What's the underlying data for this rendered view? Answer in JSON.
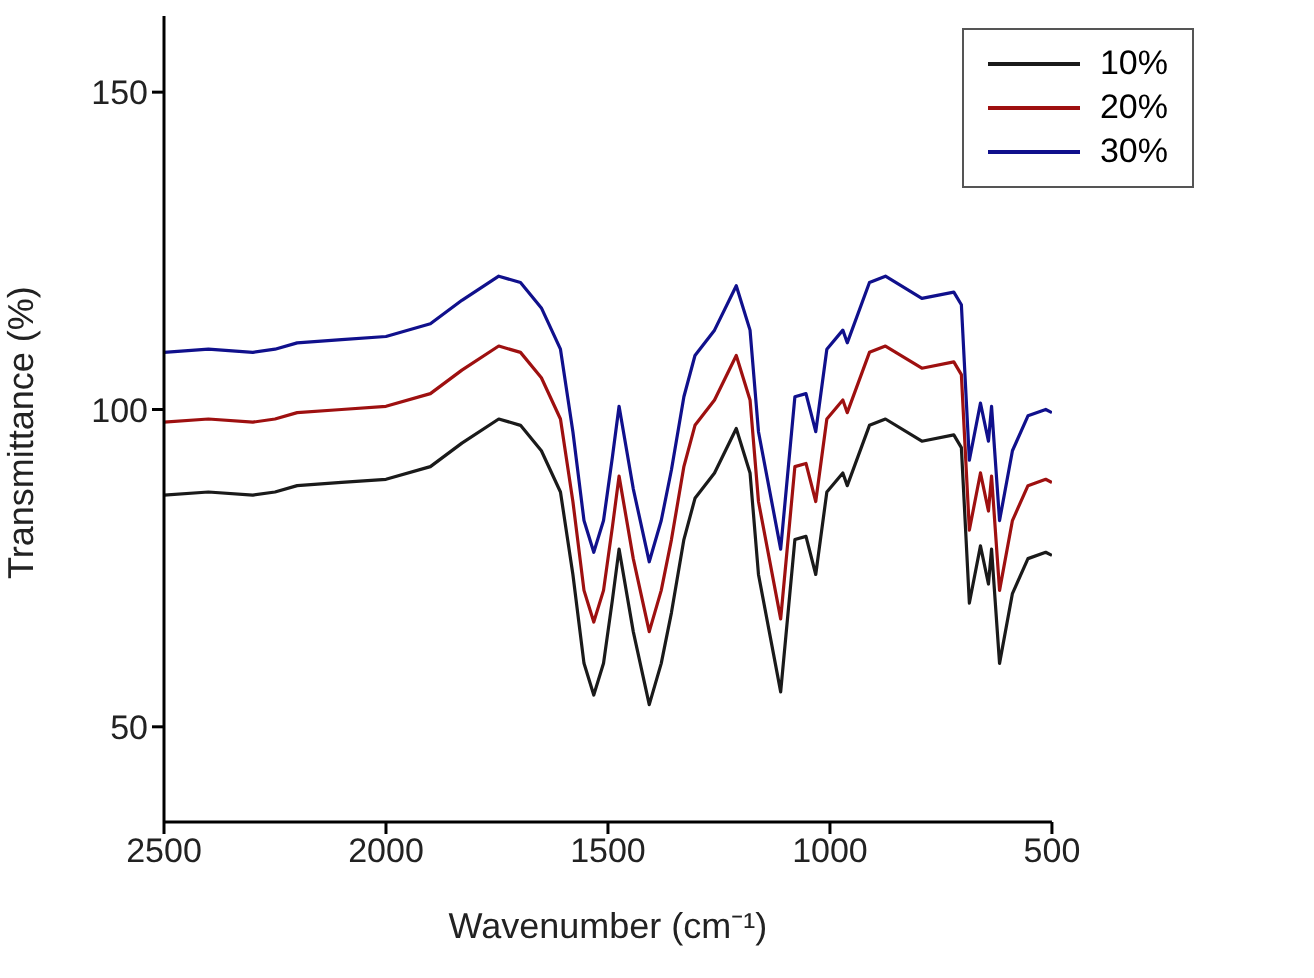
{
  "chart_data": {
    "type": "line",
    "xlabel": "Wavenumber (cm⁻¹)",
    "ylabel": "Transmittance (%)",
    "x": [
      2500,
      2400,
      2300,
      2250,
      2200,
      2100,
      2000,
      1900,
      1829,
      1746,
      1697,
      1650,
      1607,
      1579,
      1554,
      1532,
      1510,
      1490,
      1475,
      1443,
      1407,
      1380,
      1357,
      1329,
      1304,
      1260,
      1211,
      1180,
      1161,
      1111,
      1079,
      1054,
      1032,
      1007,
      971,
      961,
      911,
      875,
      793,
      721,
      704,
      686,
      661,
      643,
      636,
      618,
      589,
      554,
      514,
      500
    ],
    "series": [
      {
        "name": "10%",
        "color": "#1a1a1a",
        "values": [
          86.5,
          87,
          86.5,
          87,
          88,
          88.5,
          89,
          91,
          94.7,
          98.5,
          97.5,
          93.5,
          87,
          74,
          60,
          55,
          60,
          70,
          78,
          65,
          53.5,
          60,
          68,
          79.5,
          86,
          90,
          97,
          90,
          74,
          55.5,
          79.5,
          80,
          74,
          87,
          90,
          88,
          97.5,
          98.5,
          95,
          96,
          94,
          69.5,
          78.5,
          72.5,
          78,
          60,
          71,
          76.5,
          77.5,
          77
        ]
      },
      {
        "name": "20%",
        "color": "#9e1010",
        "values": [
          98,
          98.5,
          98,
          98.5,
          99.5,
          100,
          100.5,
          102.5,
          106.2,
          110,
          109,
          105,
          98.5,
          85.5,
          71.5,
          66.5,
          71.5,
          81.5,
          89.5,
          76.5,
          65,
          71.5,
          79.5,
          91,
          97.5,
          101.5,
          108.5,
          101.5,
          85.5,
          67,
          91,
          91.5,
          85.5,
          98.5,
          101.5,
          99.5,
          109,
          110,
          106.5,
          107.5,
          105.5,
          81,
          90,
          84,
          89.5,
          71.5,
          82.5,
          88,
          89,
          88.5
        ]
      },
      {
        "name": "30%",
        "color": "#10108c",
        "values": [
          109,
          109.5,
          109,
          109.5,
          110.5,
          111,
          111.5,
          113.5,
          117.2,
          121,
          120,
          116,
          109.5,
          96.5,
          82.5,
          77.5,
          82.5,
          92.5,
          100.5,
          87.5,
          76,
          82.5,
          90.5,
          102,
          108.5,
          112.5,
          119.5,
          112.5,
          96.5,
          78,
          102,
          102.5,
          96.5,
          109.5,
          112.5,
          110.5,
          120,
          121,
          117.5,
          118.5,
          116.5,
          92,
          101,
          95,
          100.5,
          82.5,
          93.5,
          99,
          100,
          99.5
        ]
      }
    ],
    "xlim": [
      2500,
      500
    ],
    "xticks": [
      2500,
      2000,
      1500,
      1000,
      500
    ],
    "ylim": [
      35,
      162
    ],
    "yticks": [
      50,
      100,
      150
    ],
    "legend": "top right",
    "grid": false,
    "marker": "none",
    "line_style": "solid"
  }
}
